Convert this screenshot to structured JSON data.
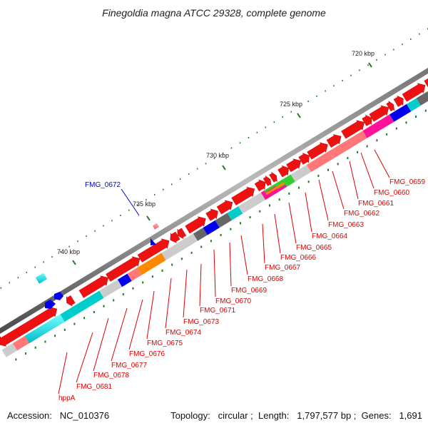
{
  "title": "Finegoldia magna ATCC 29328, complete genome",
  "footer": {
    "accession_label": "Accession:",
    "accession": "NC_010376",
    "topology_label": "Topology:",
    "topology": "circular",
    "length_label": "Length:",
    "length": "1,797,577 bp",
    "genes_label": "Genes:",
    "genes": "1,691"
  },
  "ticks": [
    "720 kbp",
    "725 kbp",
    "730 kbp",
    "735 kbp",
    "740 kbp"
  ],
  "gene_labels_red": [
    "FMG_0659",
    "FMG_0660",
    "FMG_0661",
    "FMG_0662",
    "FMG_0663",
    "FMG_0664",
    "FMG_0665",
    "FMG_0666",
    "FMG_0667",
    "FMG_0668",
    "FMG_0669",
    "FMG_0670",
    "FMG_0671",
    "FMG_0673",
    "FMG_0674",
    "FMG_0675",
    "FMG_0676",
    "FMG_0677",
    "FMG_0678",
    "FMG_0681",
    "hppA"
  ],
  "gene_label_blue": "FMG_0672",
  "colors": {
    "cds": "#ee1111",
    "backbone": "#777777",
    "label_red": "#dd0000",
    "label_blue": "#0000cc",
    "tick": "#227722",
    "cog": [
      "#ff7777",
      "#cccccc",
      "#ff1199",
      "#ff8800",
      "#00cccc",
      "#0000ee",
      "#666666",
      "#33cc33",
      "#88ff88"
    ]
  }
}
